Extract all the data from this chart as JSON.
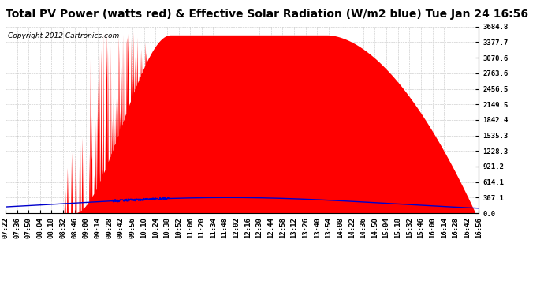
{
  "title": "Total PV Power (watts red) & Effective Solar Radiation (W/m2 blue) Tue Jan 24 16:56",
  "copyright_text": "Copyright 2012 Cartronics.com",
  "background_color": "#ffffff",
  "plot_bg_color": "#ffffff",
  "grid_color": "#aaaaaa",
  "red_color": "#ff0000",
  "blue_color": "#0000cc",
  "y_max": 3684.8,
  "y_min": 0.0,
  "y_ticks": [
    0.0,
    307.1,
    614.1,
    921.2,
    1228.3,
    1535.3,
    1842.4,
    2149.5,
    2456.5,
    2763.6,
    3070.6,
    3377.7,
    3684.8
  ],
  "title_fontsize": 10,
  "copyright_fontsize": 6.5,
  "tick_label_fontsize": 6.5,
  "visible_labels": [
    "07:22",
    "07:36",
    "07:50",
    "08:04",
    "08:18",
    "08:32",
    "08:46",
    "09:00",
    "09:14",
    "09:28",
    "09:42",
    "09:56",
    "10:10",
    "10:24",
    "10:38",
    "10:52",
    "11:06",
    "11:20",
    "11:34",
    "11:48",
    "12:02",
    "12:16",
    "12:30",
    "12:44",
    "12:58",
    "13:12",
    "13:26",
    "13:40",
    "13:54",
    "14:08",
    "14:22",
    "14:36",
    "14:50",
    "15:04",
    "15:18",
    "15:32",
    "15:46",
    "16:00",
    "16:14",
    "16:28",
    "16:42",
    "16:56"
  ],
  "start_hhmm": "07:22",
  "end_hhmm": "16:56"
}
